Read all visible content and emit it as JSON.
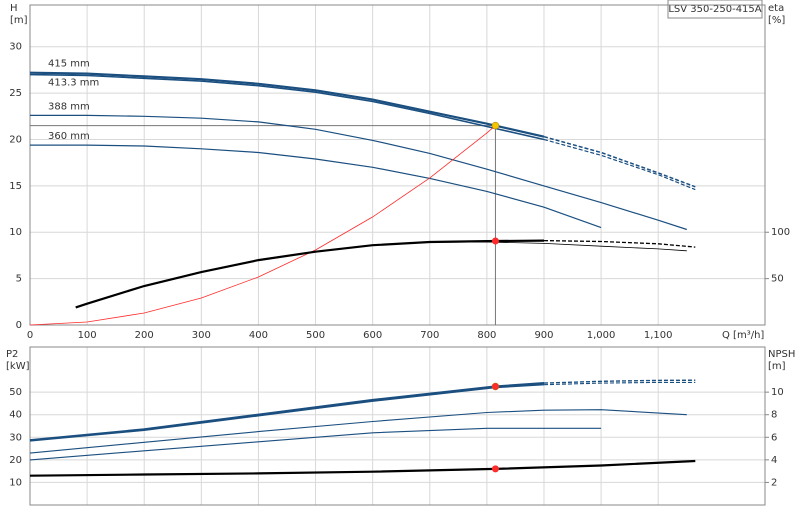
{
  "chart_data": [
    {
      "type": "line",
      "title": "LSV 350-250-415A",
      "xlabel": "Q [m³/h]",
      "ylabel": [
        "H",
        "[m]"
      ],
      "y2label": [
        "eta",
        "[%]"
      ],
      "xlim": [
        0,
        1287
      ],
      "ylim": [
        0,
        34.5
      ],
      "y2lim": [
        0,
        345
      ],
      "xticks": [
        0,
        100,
        200,
        300,
        400,
        500,
        600,
        700,
        800,
        900,
        {
          "value": 1000,
          "label": "1,000"
        },
        {
          "value": 1100,
          "label": "1,100"
        }
      ],
      "yticks": [
        0,
        5,
        10,
        15,
        20,
        25,
        30
      ],
      "y2ticks": [
        50,
        100
      ],
      "grid": true,
      "series": [
        {
          "name": "415 mm",
          "color": "#1b4f80",
          "style": "solid",
          "width": 2.2,
          "x": [
            0,
            100,
            200,
            300,
            400,
            500,
            600,
            700,
            800,
            900
          ],
          "values": [
            27.2,
            27.1,
            26.8,
            26.5,
            26.0,
            25.3,
            24.3,
            23.0,
            21.7,
            20.3
          ]
        },
        {
          "color": "#1b4f80",
          "style": "dashed",
          "width": 1.5,
          "x": [
            900,
            1000,
            1100,
            1165
          ],
          "values": [
            20.3,
            18.6,
            16.4,
            14.9
          ]
        },
        {
          "name": "413.3 mm",
          "color": "#1b4f80",
          "style": "solid",
          "width": 1.6,
          "x": [
            0,
            100,
            200,
            300,
            400,
            500,
            600,
            700,
            800,
            900
          ],
          "values": [
            27.0,
            26.9,
            26.6,
            26.3,
            25.8,
            25.1,
            24.1,
            22.8,
            21.4,
            20.0
          ]
        },
        {
          "color": "#1b4f80",
          "style": "dashed",
          "width": 1.2,
          "x": [
            900,
            1000,
            1100,
            1165
          ],
          "values": [
            20.0,
            18.3,
            16.2,
            14.6
          ]
        },
        {
          "name": "388 mm",
          "color": "#1b4f80",
          "style": "solid",
          "width": 1.2,
          "x": [
            0,
            100,
            200,
            300,
            400,
            500,
            600,
            700,
            800,
            900,
            1000,
            1100,
            1150
          ],
          "values": [
            22.6,
            22.6,
            22.5,
            22.3,
            21.9,
            21.1,
            19.9,
            18.5,
            16.8,
            15.0,
            13.2,
            11.3,
            10.3
          ]
        },
        {
          "name": "360 mm",
          "color": "#1b4f80",
          "style": "solid",
          "width": 1.2,
          "x": [
            0,
            100,
            200,
            300,
            400,
            500,
            600,
            700,
            800,
            900,
            1000
          ],
          "values": [
            19.4,
            19.4,
            19.3,
            19.0,
            18.6,
            17.9,
            17.0,
            15.8,
            14.4,
            12.7,
            10.5
          ]
        },
        {
          "color": "#ff2a2a",
          "style": "solid",
          "width": 0.8,
          "x": [
            0,
            100,
            200,
            300,
            400,
            500,
            600,
            700,
            800,
            815
          ],
          "values": [
            0,
            0.32,
            1.29,
            2.91,
            5.18,
            8.09,
            11.65,
            15.86,
            20.71,
            21.5
          ]
        },
        {
          "color": "#000000",
          "style": "solid",
          "width": 2.2,
          "axis": "y2",
          "x": [
            80,
            100,
            200,
            300,
            400,
            500,
            600,
            700,
            800,
            900
          ],
          "values": [
            19,
            23,
            42,
            57,
            70,
            79,
            86,
            89.5,
            90.5,
            91
          ]
        },
        {
          "color": "#000000",
          "style": "dashed",
          "width": 1.3,
          "axis": "y2",
          "x": [
            900,
            1000,
            1100,
            1165
          ],
          "values": [
            91,
            90,
            87.5,
            84
          ]
        },
        {
          "color": "#000000",
          "style": "solid",
          "width": 0.8,
          "axis": "y2",
          "x": [
            500,
            600,
            700,
            800,
            900,
            1000,
            1100,
            1150
          ],
          "values": [
            79,
            86,
            89,
            89.5,
            88,
            85,
            82,
            80
          ]
        }
      ],
      "duty_point": {
        "x": 815,
        "y": 21.5,
        "y2": 90.6,
        "color": "#f5c400",
        "color2": "#ff2a2a"
      }
    },
    {
      "type": "line",
      "ylabel": [
        "P2",
        "[kW]"
      ],
      "y2label": [
        "NPSH",
        "[m]"
      ],
      "ylim": [
        0,
        70
      ],
      "y2lim": [
        0,
        14
      ],
      "yticks": [
        10,
        20,
        30,
        40,
        50
      ],
      "y2ticks": [
        2,
        4,
        6,
        8,
        10
      ],
      "grid": true,
      "series": [
        {
          "color": "#1b4f80",
          "style": "solid",
          "width": 2.2,
          "x": [
            0,
            200,
            400,
            600,
            815,
            900
          ],
          "values": [
            28.7,
            33.5,
            40,
            46.5,
            52.5,
            54
          ]
        },
        {
          "color": "#1b4f80",
          "style": "dashed",
          "width": 1.4,
          "x": [
            900,
            1000,
            1100,
            1165
          ],
          "values": [
            54,
            54.8,
            55.2,
            55.3
          ]
        },
        {
          "color": "#1b4f80",
          "style": "solid",
          "width": 1.4,
          "x": [
            0,
            200,
            400,
            600,
            815,
            900
          ],
          "values": [
            28.4,
            33.1,
            39.5,
            46,
            52,
            53.3
          ]
        },
        {
          "color": "#1b4f80",
          "style": "dashed",
          "width": 1.1,
          "x": [
            900,
            1000,
            1100,
            1165
          ],
          "values": [
            53.3,
            54,
            54.3,
            54.3
          ]
        },
        {
          "color": "#1b4f80",
          "style": "solid",
          "width": 1.1,
          "x": [
            0,
            200,
            400,
            600,
            800,
            900,
            1000,
            1150
          ],
          "values": [
            23,
            27.8,
            32.5,
            37,
            41,
            42,
            42.2,
            40
          ]
        },
        {
          "color": "#1b4f80",
          "style": "solid",
          "width": 1.1,
          "x": [
            0,
            200,
            400,
            600,
            800,
            1000
          ],
          "values": [
            20,
            24,
            28,
            32,
            34,
            34
          ]
        },
        {
          "color": "#000000",
          "style": "solid",
          "width": 2.2,
          "axis": "y2",
          "x": [
            0,
            200,
            400,
            600,
            815,
            1000,
            1165
          ],
          "values": [
            2.6,
            2.7,
            2.8,
            2.95,
            3.2,
            3.5,
            3.9
          ]
        }
      ],
      "duty_point": {
        "x": 815,
        "y": 52.5,
        "y2": 3.2,
        "color": "#ff2a2a",
        "color2": "#ff2a2a"
      }
    }
  ]
}
